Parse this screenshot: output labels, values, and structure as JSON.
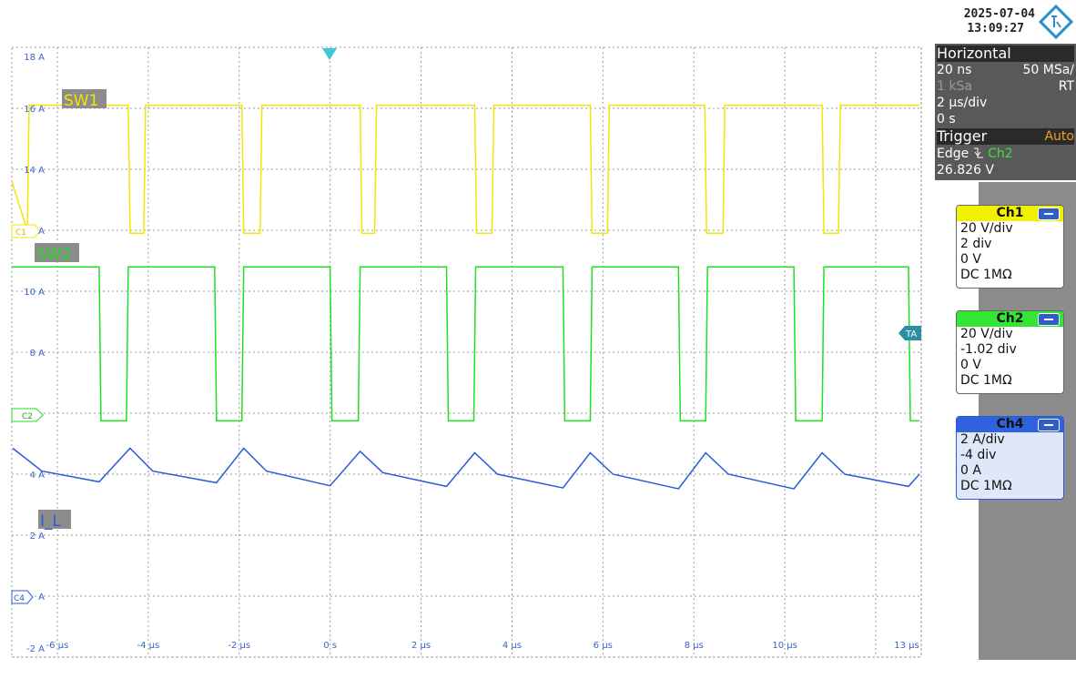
{
  "header": {
    "date": "2025-07-04",
    "time": "13:09:27"
  },
  "chart_data": {
    "type": "line",
    "xlim": [
      -7,
      13
    ],
    "xticks": [
      {
        "value": -6,
        "label": "-6 µs"
      },
      {
        "value": -4,
        "label": "-4 µs"
      },
      {
        "value": -2,
        "label": "-2 µs"
      },
      {
        "value": 0,
        "label": "0 s"
      },
      {
        "value": 2,
        "label": "2 µs"
      },
      {
        "value": 4,
        "label": "4 µs"
      },
      {
        "value": 6,
        "label": "6 µs"
      },
      {
        "value": 8,
        "label": "8 µs"
      },
      {
        "value": 10,
        "label": "10 µs"
      },
      {
        "value": 12,
        "label": null
      },
      {
        "value": 13,
        "label": "13 µs"
      }
    ],
    "ylim": [
      -2,
      18
    ],
    "yticks": [
      {
        "value": -2,
        "label": "-2 A"
      },
      {
        "value": 0,
        "label": "A"
      },
      {
        "value": 2,
        "label": "2 A"
      },
      {
        "value": 4,
        "label": "4 A"
      },
      {
        "value": 6,
        "label": null
      },
      {
        "value": 8,
        "label": "8 A"
      },
      {
        "value": 10,
        "label": "10 A"
      },
      {
        "value": 12,
        "label": "A"
      },
      {
        "value": 14,
        "label": "14 A"
      },
      {
        "value": 16,
        "label": "16 A"
      },
      {
        "value": 18,
        "label": "18 A"
      }
    ],
    "grid": true,
    "series": [
      {
        "name": "SW1",
        "color": "#f2e600",
        "x": [
          -7,
          -6.66,
          -6.62,
          -4.44,
          -4.4,
          -4.1,
          -4.06,
          -1.94,
          -1.9,
          -1.54,
          -1.5,
          0.66,
          0.7,
          0.98,
          1.02,
          3.18,
          3.22,
          3.56,
          3.6,
          5.72,
          5.76,
          6.1,
          6.14,
          8.24,
          8.28,
          8.64,
          8.68,
          10.82,
          10.86,
          11.18,
          11.22,
          12.96
        ],
        "values": [
          13.6,
          12.0,
          16.1,
          16.1,
          11.9,
          11.9,
          16.1,
          16.1,
          11.9,
          11.9,
          16.1,
          16.1,
          11.9,
          11.9,
          16.1,
          16.1,
          11.9,
          11.9,
          16.1,
          16.1,
          11.9,
          11.9,
          16.1,
          16.1,
          11.9,
          11.9,
          16.1,
          16.1,
          11.9,
          11.9,
          16.1,
          16.1
        ]
      },
      {
        "name": "SW2",
        "color": "#22dd22",
        "x": [
          -7,
          -5.08,
          -5.04,
          -4.48,
          -4.44,
          -2.54,
          -2.5,
          -1.94,
          -1.9,
          0,
          0.04,
          0.62,
          0.66,
          2.56,
          2.6,
          3.16,
          3.2,
          5.12,
          5.16,
          5.72,
          5.76,
          7.66,
          7.7,
          8.26,
          8.3,
          10.2,
          10.24,
          10.82,
          10.86,
          12.72,
          12.76,
          12.96
        ],
        "values": [
          10.8,
          10.8,
          5.75,
          5.75,
          10.8,
          10.8,
          5.75,
          5.75,
          10.8,
          10.8,
          5.75,
          5.75,
          10.8,
          10.8,
          5.75,
          5.75,
          10.8,
          10.8,
          5.75,
          5.75,
          10.8,
          10.8,
          5.75,
          5.75,
          10.8,
          10.8,
          5.75,
          5.75,
          10.8,
          10.8,
          5.75,
          5.75
        ]
      },
      {
        "name": "I_L",
        "color": "#2a5bd7",
        "x": [
          -6.98,
          -6.34,
          -5.08,
          -4.4,
          -3.9,
          -2.5,
          -1.9,
          -1.4,
          0,
          0.66,
          1.16,
          2.56,
          3.18,
          3.68,
          5.12,
          5.72,
          6.22,
          7.66,
          8.26,
          8.76,
          10.2,
          10.82,
          11.32,
          12.72,
          12.96
        ],
        "values": [
          4.85,
          4.1,
          3.75,
          4.85,
          4.1,
          3.72,
          4.85,
          4.1,
          3.62,
          4.75,
          4.05,
          3.6,
          4.7,
          4.0,
          3.55,
          4.7,
          4.0,
          3.52,
          4.7,
          4.0,
          3.52,
          4.7,
          4.0,
          3.6,
          4.0
        ]
      }
    ]
  },
  "markers": {
    "c1": "C1",
    "c2": "C2",
    "c4": "C4",
    "ta": "TA"
  },
  "panel": {
    "horizontal": {
      "title": "Horizontal",
      "resolution": "20 ns",
      "sample_rate": "50 MSa/",
      "record": "1 kSa",
      "mode": "RT",
      "scale": "2 µs/div",
      "position": "0 s"
    },
    "trigger": {
      "title": "Trigger",
      "mode": "Auto",
      "type": "Edge",
      "source": "Ch2",
      "level": "26.826 V"
    },
    "channels": [
      {
        "name": "Ch1",
        "scale": "20 V/div",
        "offset": "2 div",
        "zero": "0 V",
        "coupling": "DC 1MΩ"
      },
      {
        "name": "Ch2",
        "scale": "20 V/div",
        "offset": "-1.02 div",
        "zero": "0 V",
        "coupling": "DC 1MΩ"
      },
      {
        "name": "Ch4",
        "scale": "2 A/div",
        "offset": "-4 div",
        "zero": "0 A",
        "coupling": "DC 1MΩ"
      }
    ]
  }
}
